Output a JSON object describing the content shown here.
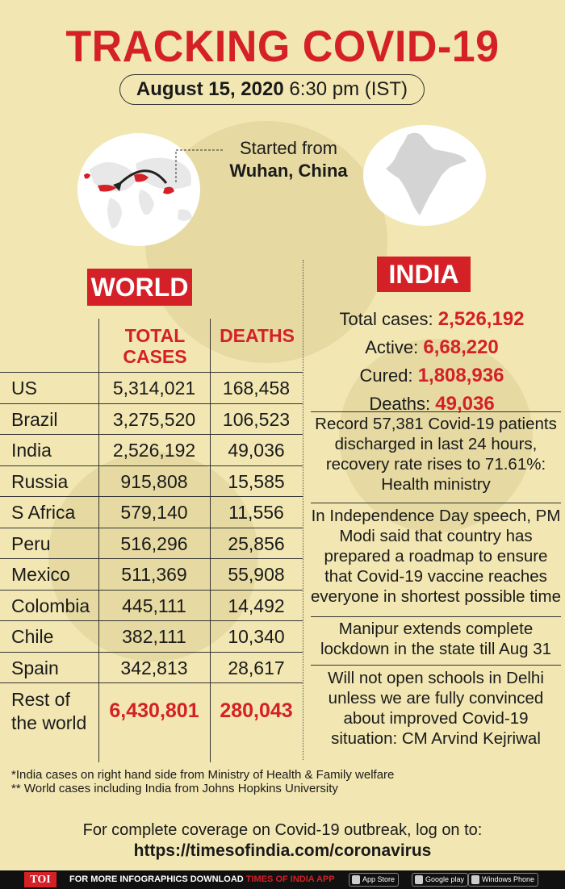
{
  "header": {
    "title": "TRACKING COVID-19",
    "date": "August 15, 2020",
    "time": "6:30 pm (IST)"
  },
  "origin": {
    "started_label": "Started from",
    "city": "Wuhan, China"
  },
  "world": {
    "label": "WORLD",
    "col_total": "TOTAL CASES",
    "col_deaths": "DEATHS",
    "rows": [
      {
        "country": "US",
        "cases": "5,314,021",
        "deaths": "168,458"
      },
      {
        "country": "Brazil",
        "cases": "3,275,520",
        "deaths": "106,523"
      },
      {
        "country": "India",
        "cases": "2,526,192",
        "deaths": "49,036"
      },
      {
        "country": "Russia",
        "cases": "915,808",
        "deaths": "15,585"
      },
      {
        "country": "S Africa",
        "cases": "579,140",
        "deaths": "11,556"
      },
      {
        "country": "Peru",
        "cases": "516,296",
        "deaths": "25,856"
      },
      {
        "country": "Mexico",
        "cases": "511,369",
        "deaths": "55,908"
      },
      {
        "country": "Colombia",
        "cases": "445,111",
        "deaths": "14,492"
      },
      {
        "country": "Chile",
        "cases": "382,111",
        "deaths": "10,340"
      },
      {
        "country": "Spain",
        "cases": "342,813",
        "deaths": "28,617"
      }
    ],
    "rest": {
      "country": "Rest of the world",
      "cases": "6,430,801",
      "deaths": "280,043"
    }
  },
  "india": {
    "label": "INDIA",
    "total_label": "Total cases:",
    "total": "2,526,192",
    "active_label": "Active:",
    "active": "6,68,220",
    "cured_label": "Cured:",
    "cured": "1,808,936",
    "deaths_label": "Deaths:",
    "deaths": "49,036",
    "news": [
      "Record 57,381 Covid-19 patients discharged in last 24 hours, recovery rate rises to 71.61%: Health ministry",
      "In Independence Day speech, PM Modi said that country has prepared a roadmap to ensure that Covid-19 vaccine reaches everyone in shortest possible time",
      "Manipur extends complete lockdown in the state till Aug 31",
      "Will not open schools in Delhi unless we are fully convinced about improved Covid-19 situation: CM Arvind Kejriwal"
    ]
  },
  "notes": [
    "*India cases on right hand side from Ministry of Health & Family welfare",
    "** World cases including India from Johns Hopkins University"
  ],
  "coverage": {
    "text": "For complete coverage on Covid-19 outbreak, log on to:",
    "url": "https://timesofindia.com/coronavirus"
  },
  "footer": {
    "logo": "TOI",
    "promo": "FOR MORE  INFOGRAPHICS DOWNLOAD",
    "app": "TIMES OF INDIA APP",
    "store1": "App Store",
    "store2": "Google play",
    "store3": "Windows Phone"
  },
  "colors": {
    "accent": "#d42027",
    "background": "#f2e7b2"
  }
}
